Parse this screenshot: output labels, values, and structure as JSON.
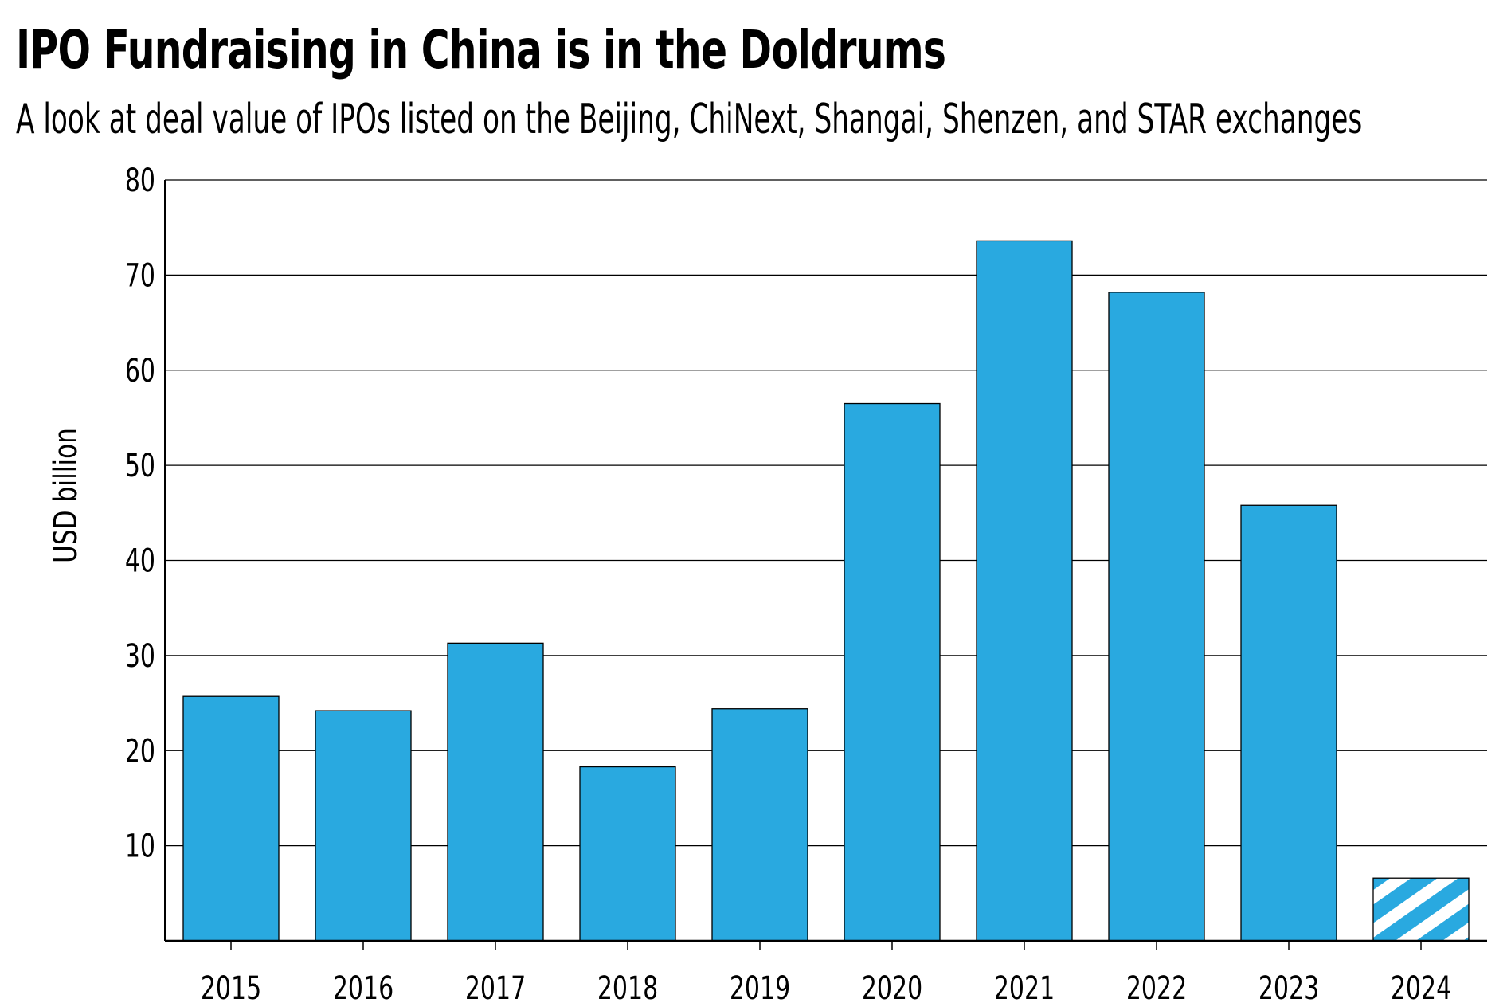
{
  "header": {
    "title": "IPO Fundraising in China is in the Doldrums",
    "subtitle": "A look at deal value of IPOs listed on the Beijing, ChiNext, Shangai, Shenzen, and STAR exchanges"
  },
  "colors": {
    "bar": "#29a9e0",
    "stroke": "#000000",
    "grid": "#000000",
    "hatch_light": "#ffffff"
  },
  "chart_data": {
    "type": "bar",
    "title": "IPO Fundraising in China is in the Doldrums",
    "subtitle": "A look at deal value of IPOs listed on the Beijing, ChiNext, Shangai, Shenzen, and STAR exchanges",
    "xlabel": "",
    "ylabel": "USD billion",
    "categories": [
      "2015",
      "2016",
      "2017",
      "2018",
      "2019",
      "2020",
      "2021",
      "2022",
      "2023",
      "2024"
    ],
    "values": [
      25.7,
      24.2,
      31.3,
      18.3,
      24.4,
      56.5,
      73.6,
      68.2,
      45.8,
      6.6
    ],
    "hatched": [
      false,
      false,
      false,
      false,
      false,
      false,
      false,
      false,
      false,
      true
    ],
    "ylim": [
      0,
      80
    ],
    "yticks": [
      10,
      20,
      30,
      40,
      50,
      60,
      70,
      80
    ],
    "grid": true
  }
}
